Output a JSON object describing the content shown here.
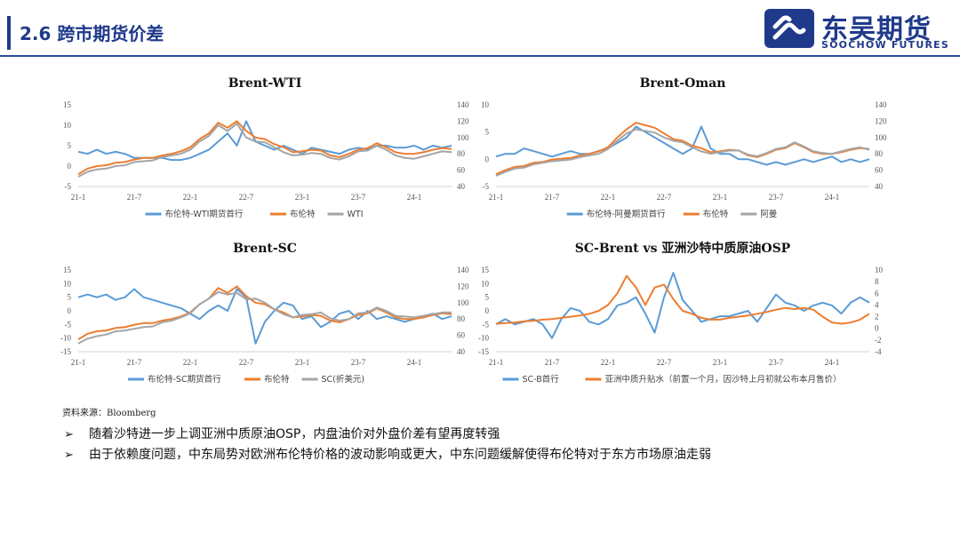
{
  "header": {
    "title": "2.6 跨市期货价差",
    "logo_cn": "东吴期货",
    "logo_en": "SOOCHOW FUTURES"
  },
  "source_note": "资料来源：Bloomberg",
  "bullets": [
    "随着沙特进一步上调亚洲中质原油OSP，内盘油价对外盘价差有望再度转强",
    "由于依赖度问题，中东局势对欧洲布伦特价格的波动影响或更大，中东问题缓解使得布伦特对于东方市场原油走弱"
  ],
  "colors": {
    "blue": "#5b9bd5",
    "orange": "#ed7d31",
    "gray": "#a5a5a5",
    "accent": "#1f3a8a"
  },
  "chart_data": [
    {
      "type": "line",
      "title": "Brent-WTI",
      "x_ticks": [
        "21-1",
        "21-7",
        "22-1",
        "22-7",
        "23-1",
        "23-7",
        "24-1"
      ],
      "x_range": [
        0,
        40
      ],
      "x_tick_pos": [
        0,
        6,
        12,
        18,
        24,
        30,
        36
      ],
      "ylim_left": [
        -5,
        15
      ],
      "yticks_left": [
        -5,
        0,
        5,
        10,
        15
      ],
      "ylim_right": [
        40,
        140
      ],
      "yticks_right": [
        40,
        60,
        80,
        100,
        120,
        140
      ],
      "series": [
        {
          "name": "布伦特-WTI期货首行",
          "axis": "left",
          "color": "#5b9bd5",
          "values": [
            3.5,
            3,
            4,
            3,
            3.5,
            3,
            2,
            2,
            2,
            2,
            1.5,
            1.5,
            2,
            3,
            4,
            6,
            8,
            5,
            11,
            6,
            5,
            4,
            5,
            4,
            3,
            4.5,
            4,
            3.5,
            3,
            4,
            4.5,
            4,
            5,
            5,
            4.5,
            4.5,
            5,
            4,
            5,
            4.5,
            5
          ]
        },
        {
          "name": "布伦特",
          "axis": "right",
          "color": "#ed7d31",
          "values": [
            55,
            62,
            65,
            66,
            69,
            70,
            73,
            75,
            75,
            78,
            80,
            83,
            88,
            98,
            105,
            118,
            112,
            120,
            108,
            100,
            98,
            92,
            88,
            82,
            83,
            85,
            84,
            78,
            76,
            80,
            85,
            87,
            93,
            88,
            82,
            80,
            80,
            82,
            85,
            87,
            86
          ]
        },
        {
          "name": "WTI",
          "axis": "right",
          "color": "#a5a5a5",
          "values": [
            52,
            58,
            61,
            62,
            65,
            66,
            70,
            71,
            72,
            76,
            78,
            80,
            85,
            95,
            102,
            115,
            108,
            117,
            100,
            95,
            94,
            88,
            82,
            78,
            79,
            81,
            80,
            75,
            73,
            77,
            83,
            84,
            90,
            85,
            78,
            75,
            74,
            77,
            80,
            83,
            82
          ]
        }
      ],
      "legend": [
        "布伦特-WTI期货首行",
        "布伦特",
        "WTI"
      ]
    },
    {
      "type": "line",
      "title": "Brent-Oman",
      "x_ticks": [
        "21-1",
        "21-7",
        "22-1",
        "22-7",
        "23-1",
        "23-7",
        "24-1"
      ],
      "x_range": [
        0,
        40
      ],
      "x_tick_pos": [
        0,
        6,
        12,
        18,
        24,
        30,
        36
      ],
      "ylim_left": [
        -5,
        10
      ],
      "yticks_left": [
        -5,
        0,
        5,
        10
      ],
      "ylim_right": [
        40,
        140
      ],
      "yticks_right": [
        40,
        60,
        80,
        100,
        120,
        140
      ],
      "series": [
        {
          "name": "布伦特-阿曼期货首行",
          "axis": "left",
          "color": "#5b9bd5",
          "values": [
            0.5,
            1,
            1,
            2,
            1.5,
            1,
            0.5,
            1,
            1.5,
            1,
            1,
            1.5,
            2,
            3,
            4,
            6,
            5,
            4,
            3,
            2,
            1,
            2,
            6,
            2,
            1,
            1,
            0,
            0,
            -0.5,
            -1,
            -0.5,
            -1,
            -0.5,
            0,
            -0.5,
            0,
            0.5,
            -0.5,
            0,
            -0.5,
            0
          ]
        },
        {
          "name": "布伦特",
          "axis": "right",
          "color": "#ed7d31",
          "values": [
            55,
            60,
            64,
            65,
            69,
            70,
            73,
            74,
            75,
            78,
            80,
            83,
            88,
            100,
            110,
            118,
            115,
            112,
            105,
            98,
            96,
            90,
            87,
            82,
            83,
            85,
            84,
            78,
            76,
            80,
            85,
            87,
            93,
            88,
            82,
            80,
            80,
            82,
            85,
            87,
            86
          ]
        },
        {
          "name": "阿曼",
          "axis": "right",
          "color": "#a5a5a5",
          "values": [
            53,
            58,
            62,
            63,
            67,
            69,
            71,
            72,
            73,
            76,
            78,
            80,
            86,
            96,
            105,
            110,
            108,
            106,
            100,
            96,
            94,
            88,
            83,
            80,
            82,
            84,
            84,
            79,
            77,
            81,
            86,
            88,
            94,
            89,
            83,
            81,
            80,
            83,
            86,
            88,
            85
          ]
        }
      ],
      "legend": [
        "布伦特-阿曼期货首行",
        "布伦特",
        "阿曼"
      ]
    },
    {
      "type": "line",
      "title": "Brent-SC",
      "x_ticks": [
        "21-1",
        "21-7",
        "22-1",
        "22-7",
        "23-1",
        "23-7",
        "24-1"
      ],
      "x_range": [
        0,
        40
      ],
      "x_tick_pos": [
        0,
        6,
        12,
        18,
        24,
        30,
        36
      ],
      "ylim_left": [
        -15,
        15
      ],
      "yticks_left": [
        -15,
        -10,
        -5,
        0,
        5,
        10,
        15
      ],
      "ylim_right": [
        40,
        140
      ],
      "yticks_right": [
        40,
        60,
        80,
        100,
        120,
        140
      ],
      "series": [
        {
          "name": "布伦特-SC期货首行",
          "axis": "left",
          "color": "#5b9bd5",
          "values": [
            5,
            6,
            5,
            6,
            4,
            5,
            8,
            5,
            4,
            3,
            2,
            1,
            -1,
            -3,
            0,
            2,
            0,
            8,
            5,
            -12,
            -4,
            0,
            3,
            2,
            -3,
            -2,
            -6,
            -4,
            -1,
            0,
            -3,
            0,
            -3,
            -2,
            -3,
            -4,
            -3,
            -2,
            -1,
            -3,
            -2
          ]
        },
        {
          "name": "布伦特",
          "axis": "right",
          "color": "#ed7d31",
          "values": [
            55,
            62,
            65,
            66,
            69,
            70,
            73,
            75,
            75,
            78,
            80,
            83,
            88,
            98,
            105,
            118,
            112,
            120,
            108,
            100,
            98,
            92,
            88,
            82,
            83,
            85,
            84,
            78,
            76,
            80,
            85,
            87,
            93,
            88,
            82,
            80,
            80,
            82,
            85,
            87,
            86
          ]
        },
        {
          "name": "SC(折美元)",
          "axis": "right",
          "color": "#a5a5a5",
          "values": [
            50,
            56,
            59,
            61,
            65,
            66,
            68,
            70,
            71,
            76,
            78,
            82,
            87,
            98,
            105,
            113,
            110,
            112,
            104,
            105,
            100,
            92,
            86,
            82,
            85,
            86,
            88,
            81,
            78,
            80,
            87,
            88,
            94,
            90,
            84,
            83,
            82,
            84,
            86,
            88,
            88
          ]
        }
      ],
      "legend": [
        "布伦特-SC期货首行",
        "布伦特",
        "SC(折美元)"
      ]
    },
    {
      "type": "line",
      "title": "SC-Brent vs 亚洲沙特中质原油OSP",
      "x_ticks": [
        "21-1",
        "21-7",
        "22-1",
        "22-7",
        "23-1",
        "23-7",
        "24-1"
      ],
      "x_range": [
        0,
        40
      ],
      "x_tick_pos": [
        0,
        6,
        12,
        18,
        24,
        30,
        36
      ],
      "ylim_left": [
        -15,
        15
      ],
      "yticks_left": [
        -15,
        -10,
        -5,
        0,
        5,
        10,
        15
      ],
      "ylim_right": [
        -4,
        10
      ],
      "yticks_right": [
        -4,
        -2,
        0,
        2,
        4,
        6,
        8,
        10
      ],
      "series": [
        {
          "name": "SC-B首行",
          "axis": "left",
          "color": "#5b9bd5",
          "values": [
            -5,
            -3,
            -5,
            -4,
            -3,
            -5,
            -10,
            -3,
            1,
            0,
            -4,
            -5,
            -3,
            2,
            3,
            5,
            -1,
            -8,
            5,
            14,
            4,
            0,
            -4,
            -3,
            -2,
            -2,
            -1,
            0,
            -4,
            1,
            6,
            3,
            2,
            0,
            2,
            3,
            2,
            -1,
            3,
            5,
            3
          ]
        },
        {
          "name": "亚洲中质升贴水（前置一个月，因沙特上月初就公布本月售价）",
          "axis": "right",
          "color": "#ed7d31",
          "values": [
            0.8,
            0.9,
            1,
            1.2,
            1.3,
            1.5,
            1.6,
            1.8,
            2,
            2.2,
            2.5,
            3,
            4,
            6,
            9,
            7,
            4,
            7,
            7.5,
            5,
            3,
            2.5,
            1.8,
            1.5,
            1.5,
            1.8,
            2,
            2.2,
            2.5,
            2.8,
            3.2,
            3.5,
            3.3,
            3.5,
            3.2,
            2,
            1,
            0.8,
            1,
            1.5,
            2.5
          ]
        }
      ],
      "legend": [
        "SC-B首行",
        "亚洲中质升贴水（前置一个月，因沙特上月初就公布本月售价）"
      ]
    }
  ]
}
